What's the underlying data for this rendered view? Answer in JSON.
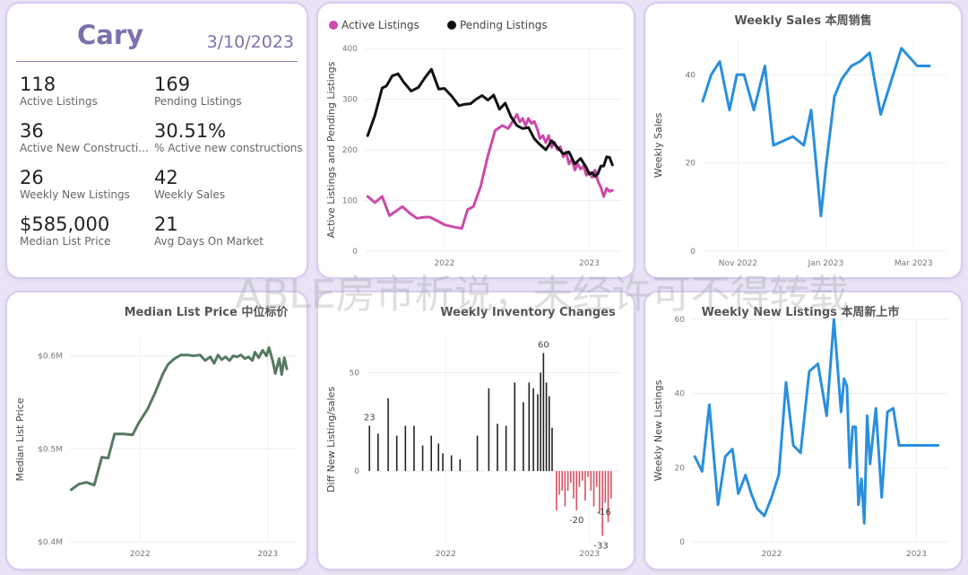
{
  "watermark": "ABLE房市析说，未经许可不得转载",
  "summary": {
    "city": "Cary",
    "date": "3/10/2023",
    "kpis": [
      {
        "value": "118",
        "label": "Active Listings"
      },
      {
        "value": "169",
        "label": "Pending Listings"
      },
      {
        "value": "36",
        "label": "Active New Constructi..."
      },
      {
        "value": "30.51%",
        "label": "% Active new constructions"
      },
      {
        "value": "26",
        "label": "Weekly New Listings"
      },
      {
        "value": "42",
        "label": "Weekly Sales"
      },
      {
        "value": "$585,000",
        "label": "Median List Price"
      },
      {
        "value": "21",
        "label": "Avg Days On Market"
      }
    ]
  },
  "chart_data": [
    {
      "id": "listings",
      "type": "line",
      "title": "",
      "ylabel": "Active Listings and Pending Listings",
      "ylim": [
        0,
        400
      ],
      "yticks": [
        0,
        100,
        200,
        300,
        400
      ],
      "xlim": [
        2021.45,
        2023.22
      ],
      "xticks": [
        {
          "v": 2022.0,
          "label": "2022"
        },
        {
          "v": 2023.0,
          "label": "2023"
        }
      ],
      "legend": "top-left",
      "series": [
        {
          "name": "Active Listings",
          "color": "#cc4aa8",
          "x": [
            2021.47,
            2021.52,
            2021.57,
            2021.62,
            2021.66,
            2021.71,
            2021.76,
            2021.81,
            2021.86,
            2021.9,
            2021.95,
            2022.0,
            2022.06,
            2022.12,
            2022.16,
            2022.2,
            2022.25,
            2022.3,
            2022.35,
            2022.4,
            2022.44,
            2022.48,
            2022.5,
            2022.52,
            2022.54,
            2022.56,
            2022.58,
            2022.6,
            2022.62,
            2022.64,
            2022.66,
            2022.68,
            2022.7,
            2022.72,
            2022.74,
            2022.76,
            2022.78,
            2022.8,
            2022.82,
            2022.84,
            2022.86,
            2022.88,
            2022.9,
            2022.92,
            2022.94,
            2022.96,
            2022.98,
            2023.0,
            2023.02,
            2023.04,
            2023.06,
            2023.08,
            2023.1,
            2023.12,
            2023.14,
            2023.16
          ],
          "y": [
            108,
            96,
            108,
            70,
            78,
            88,
            75,
            65,
            67,
            67,
            60,
            52,
            48,
            45,
            82,
            88,
            128,
            188,
            238,
            248,
            242,
            260,
            270,
            255,
            262,
            248,
            262,
            252,
            256,
            242,
            222,
            228,
            214,
            228,
            205,
            215,
            200,
            206,
            186,
            196,
            172,
            182,
            160,
            172,
            162,
            168,
            150,
            156,
            146,
            160,
            138,
            126,
            108,
            124,
            118,
            120
          ]
        },
        {
          "name": "Pending Listings",
          "color": "#111111",
          "x": [
            2021.47,
            2021.52,
            2021.57,
            2021.6,
            2021.64,
            2021.68,
            2021.72,
            2021.77,
            2021.82,
            2021.86,
            2021.91,
            2021.96,
            2022.0,
            2022.05,
            2022.1,
            2022.14,
            2022.18,
            2022.22,
            2022.26,
            2022.3,
            2022.34,
            2022.38,
            2022.42,
            2022.46,
            2022.5,
            2022.54,
            2022.58,
            2022.62,
            2022.66,
            2022.7,
            2022.74,
            2022.78,
            2022.82,
            2022.86,
            2022.9,
            2022.94,
            2022.98,
            2023.0,
            2023.02,
            2023.04,
            2023.06,
            2023.08,
            2023.1,
            2023.12,
            2023.14,
            2023.16
          ],
          "y": [
            228,
            268,
            322,
            326,
            346,
            350,
            333,
            316,
            323,
            340,
            359,
            320,
            321,
            306,
            287,
            290,
            291,
            300,
            307,
            298,
            308,
            280,
            292,
            265,
            248,
            242,
            244,
            222,
            210,
            200,
            218,
            205,
            192,
            196,
            172,
            183,
            165,
            152,
            155,
            147,
            153,
            168,
            168,
            186,
            185,
            170
          ]
        }
      ]
    },
    {
      "id": "weekly_sales",
      "type": "line",
      "title": "Weekly Sales 本周销售",
      "ylabel": "Weekly Sales",
      "ylim": [
        0,
        48
      ],
      "yticks": [
        0,
        20,
        40
      ],
      "xlim": [
        0,
        1
      ],
      "xticks": [
        {
          "v": 0.145,
          "label": "Nov 2022"
        },
        {
          "v": 0.505,
          "label": "Jan 2023"
        },
        {
          "v": 0.865,
          "label": "Mar 2023"
        }
      ],
      "series": [
        {
          "name": "",
          "color": "#2a8fde",
          "x": [
            0.0,
            0.035,
            0.07,
            0.11,
            0.14,
            0.17,
            0.21,
            0.255,
            0.29,
            0.37,
            0.415,
            0.445,
            0.485,
            0.505,
            0.54,
            0.57,
            0.61,
            0.645,
            0.685,
            0.73,
            0.77,
            0.815,
            0.88,
            0.93
          ],
          "y": [
            34,
            40,
            43,
            32,
            40,
            40,
            32,
            42,
            24,
            26,
            24,
            32,
            8,
            19,
            35,
            39,
            42,
            43,
            45,
            31,
            38,
            46,
            42,
            42
          ]
        }
      ]
    },
    {
      "id": "median_price",
      "type": "line",
      "title": "Median List Price 中位标价",
      "ylabel": "Median List Price",
      "ylim": [
        0.4,
        0.62
      ],
      "yticks": [
        {
          "v": 0.4,
          "label": "$0.4M"
        },
        {
          "v": 0.5,
          "label": "$0.5M"
        },
        {
          "v": 0.6,
          "label": "$0.6M"
        }
      ],
      "xlim": [
        2021.45,
        2023.22
      ],
      "xticks": [
        {
          "v": 2022.0,
          "label": "2022"
        },
        {
          "v": 2023.0,
          "label": "2023"
        }
      ],
      "series": [
        {
          "name": "",
          "color": "#557a60",
          "x": [
            2021.46,
            2021.52,
            2021.58,
            2021.64,
            2021.7,
            2021.75,
            2021.8,
            2021.87,
            2021.94,
            2021.99,
            2022.06,
            2022.12,
            2022.18,
            2022.22,
            2022.27,
            2022.32,
            2022.37,
            2022.42,
            2022.47,
            2022.51,
            2022.55,
            2022.58,
            2022.61,
            2022.64,
            2022.67,
            2022.7,
            2022.73,
            2022.76,
            2022.79,
            2022.82,
            2022.85,
            2022.88,
            2022.9,
            2022.93,
            2022.96,
            2022.99,
            2023.01,
            2023.04,
            2023.06,
            2023.09,
            2023.11,
            2023.13,
            2023.15
          ],
          "y": [
            0.456,
            0.462,
            0.464,
            0.461,
            0.491,
            0.49,
            0.516,
            0.516,
            0.515,
            0.528,
            0.543,
            0.561,
            0.581,
            0.591,
            0.597,
            0.601,
            0.601,
            0.6,
            0.601,
            0.595,
            0.599,
            0.592,
            0.601,
            0.596,
            0.599,
            0.595,
            0.6,
            0.599,
            0.601,
            0.597,
            0.599,
            0.595,
            0.604,
            0.598,
            0.606,
            0.6,
            0.609,
            0.594,
            0.581,
            0.597,
            0.58,
            0.598,
            0.586
          ]
        }
      ]
    },
    {
      "id": "inventory_changes",
      "type": "bar",
      "title": "Weekly Inventory Changes",
      "ylabel": "Diff New Listing/sales",
      "ylim": [
        -36,
        68
      ],
      "yticks": [
        0,
        50
      ],
      "xlim": [
        2021.45,
        2023.22
      ],
      "xticks": [
        {
          "v": 2022.0,
          "label": "2022"
        },
        {
          "v": 2023.0,
          "label": "2023"
        }
      ],
      "positive_color": "#222222",
      "negative_color": "#d9515f",
      "data_labels": [
        {
          "x": 2021.47,
          "y": 23,
          "label": "23"
        },
        {
          "x": 2022.68,
          "y": 60,
          "label": "60"
        },
        {
          "x": 2022.91,
          "y": -20,
          "label": "-20"
        },
        {
          "x": 2023.1,
          "y": -16,
          "label": "-16"
        },
        {
          "x": 2023.08,
          "y": -33,
          "label": "-33"
        }
      ],
      "x": [
        2021.47,
        2021.53,
        2021.6,
        2021.66,
        2021.72,
        2021.78,
        2021.84,
        2021.9,
        2021.95,
        2021.98,
        2022.04,
        2022.1,
        2022.22,
        2022.3,
        2022.36,
        2022.42,
        2022.48,
        2022.54,
        2022.58,
        2022.61,
        2022.64,
        2022.66,
        2022.68,
        2022.7,
        2022.72,
        2022.74,
        2022.77,
        2022.79,
        2022.81,
        2022.83,
        2022.85,
        2022.87,
        2022.89,
        2022.91,
        2022.93,
        2022.95,
        2022.97,
        2022.99,
        2023.01,
        2023.03,
        2023.05,
        2023.07,
        2023.09,
        2023.11,
        2023.13,
        2023.15
      ],
      "values": [
        23,
        19,
        37,
        18,
        23,
        23,
        13,
        18,
        14,
        9,
        8,
        6,
        18,
        42,
        24,
        23,
        45,
        35,
        45,
        42,
        39,
        50,
        60,
        45,
        38,
        22,
        -20,
        -12,
        -10,
        -18,
        -10,
        -6,
        -14,
        -20,
        -8,
        -5,
        -15,
        -3,
        -10,
        -18,
        -8,
        -22,
        -33,
        -16,
        -26,
        -14
      ]
    },
    {
      "id": "new_listings",
      "type": "line",
      "title": "Weekly New Listings 本周新上市",
      "ylabel": "Weekly New Listings",
      "ylim": [
        0,
        60
      ],
      "yticks": [
        0,
        20,
        40,
        60
      ],
      "xlim": [
        2021.45,
        2023.22
      ],
      "xticks": [
        {
          "v": 2022.0,
          "label": "2022"
        },
        {
          "v": 2023.0,
          "label": "2023"
        }
      ],
      "series": [
        {
          "name": "",
          "color": "#2a8fde",
          "x": [
            2021.47,
            2021.52,
            2021.57,
            2021.63,
            2021.68,
            2021.73,
            2021.77,
            2021.82,
            2021.86,
            2021.9,
            2021.95,
            2022.0,
            2022.05,
            2022.1,
            2022.15,
            2022.2,
            2022.26,
            2022.32,
            2022.38,
            2022.43,
            2022.48,
            2022.5,
            2022.52,
            2022.54,
            2022.56,
            2022.58,
            2022.6,
            2022.62,
            2022.64,
            2022.66,
            2022.68,
            2022.72,
            2022.76,
            2022.8,
            2022.84,
            2022.88,
            2022.91,
            2022.94,
            2022.97,
            2023.0,
            2023.03,
            2023.06,
            2023.09,
            2023.11,
            2023.13,
            2023.15
          ],
          "y": [
            23,
            19,
            37,
            10,
            23,
            25,
            13,
            18,
            13,
            9,
            7,
            12,
            18,
            43,
            26,
            24,
            46,
            48,
            34,
            60,
            35,
            44,
            42,
            20,
            31,
            31,
            10,
            17,
            5,
            34,
            21,
            36,
            12,
            35,
            36,
            26,
            26,
            26,
            26,
            26,
            26,
            26,
            26,
            26,
            26,
            26
          ]
        }
      ]
    }
  ]
}
